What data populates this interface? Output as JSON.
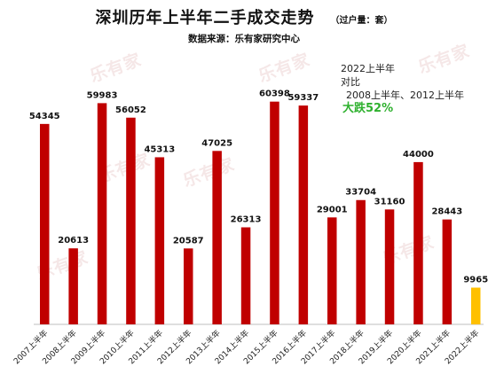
{
  "header": {
    "title": "深圳历年上半年二手成交走势",
    "unit": "（过户量：套）",
    "source": "数据来源：乐有家研究中心"
  },
  "annotation": {
    "line1": "2022上半年",
    "line2": "对比",
    "line3": "2008上半年、2012上半年",
    "line4": "大跌52%"
  },
  "watermark": "乐有家",
  "colors": {
    "bar": "#c00000",
    "highlight": "#ffc000",
    "text_green": "#2fb12f"
  },
  "chart_data": {
    "type": "bar",
    "title": "深圳历年上半年二手成交走势",
    "xlabel": "",
    "ylabel": "",
    "categories": [
      "2007上半年",
      "2008上半年",
      "2009上半年",
      "2010上半年",
      "2011上半年",
      "2012上半年",
      "2013上半年",
      "2014上半年",
      "2015上半年",
      "2016上半年",
      "2017上半年",
      "2018上半年",
      "2019上半年",
      "2020上半年",
      "2021上半年",
      "2022上半年"
    ],
    "values": [
      54345,
      20613,
      59983,
      56052,
      45313,
      20587,
      47025,
      26313,
      60398,
      59337,
      29001,
      33704,
      31160,
      44000,
      28443,
      9965
    ],
    "highlight_index": 15,
    "ylim": [
      0,
      62000
    ],
    "grid": false,
    "legend": "none"
  }
}
